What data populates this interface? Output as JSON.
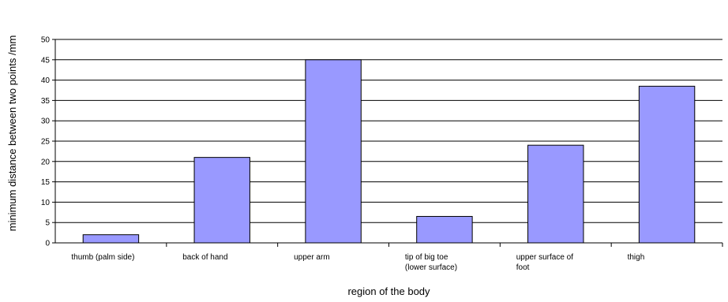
{
  "chart_data": {
    "type": "bar",
    "title": "",
    "xlabel": "region of the body",
    "ylabel": "minimum distance between two points /mm",
    "ylim": [
      0,
      50
    ],
    "ytick_step": 5,
    "grid": true,
    "legend": "none",
    "bar_color": "#9999ff",
    "categories": [
      [
        "thumb (palm side)"
      ],
      [
        "back of hand"
      ],
      [
        "upper arm"
      ],
      [
        "tip of big toe",
        "(lower surface)"
      ],
      [
        "upper surface of",
        "foot"
      ],
      [
        "thigh"
      ]
    ],
    "values": [
      2,
      21,
      45,
      6.5,
      24,
      38.5
    ]
  }
}
